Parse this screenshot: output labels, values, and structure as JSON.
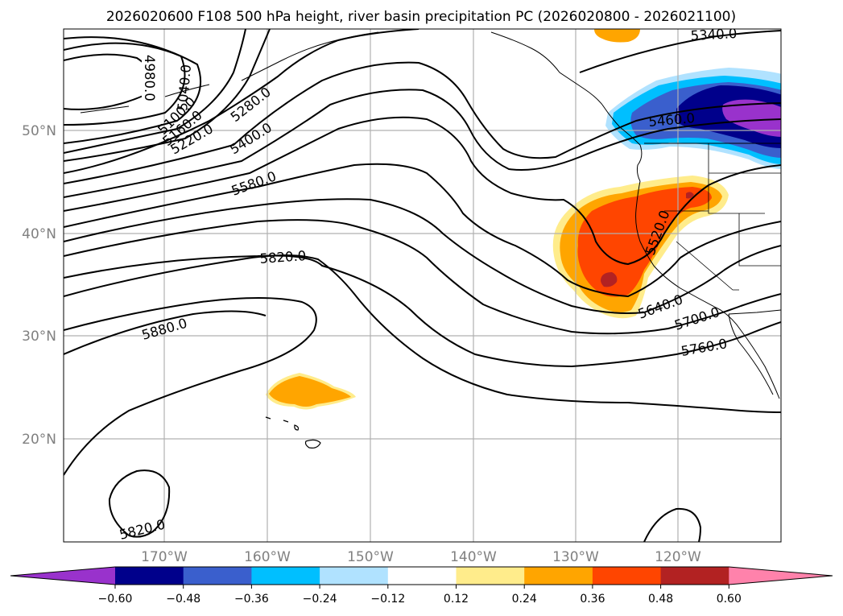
{
  "title": "2026020600 F108 500 hPa height, river basin precipitation PC (2026020800 - 2026021100)",
  "map": {
    "lon_labels": [
      "170°W",
      "160°W",
      "150°W",
      "140°W",
      "130°W",
      "120°W"
    ],
    "lat_labels": [
      "50°N",
      "40°N",
      "30°N",
      "20°N"
    ],
    "height_contour_labels": [
      "4980.0",
      "5040.0",
      "5100.0",
      "5160.0",
      "5220.0",
      "5280.0",
      "5340.0",
      "5400.0",
      "5460.0",
      "5520.0",
      "5580.0",
      "5640.0",
      "5700.0",
      "5760.0",
      "5820.0",
      "5880.0",
      "5820.0"
    ]
  },
  "colorbar": {
    "tick_labels": [
      "−0.60",
      "−0.48",
      "−0.36",
      "−0.24",
      "−0.12",
      "0.12",
      "0.24",
      "0.36",
      "0.48",
      "0.60"
    ],
    "colors": [
      "#9932cc",
      "#00008b",
      "#3a5fcd",
      "#00bfff",
      "#b0e2ff",
      "#ffffff",
      "#ffec8b",
      "#ffa500",
      "#ff4500",
      "#b22222",
      "#ff82ab"
    ]
  },
  "colors": {
    "pos_low": "#ffec8b",
    "pos_mid": "#ffa500",
    "pos_high": "#ff4500",
    "pos_max": "#b22222",
    "neg_low": "#b0e2ff",
    "neg_mid": "#00bfff",
    "neg_high": "#3a5fcd",
    "neg_max": "#00008b",
    "neg_extreme": "#9932cc"
  }
}
